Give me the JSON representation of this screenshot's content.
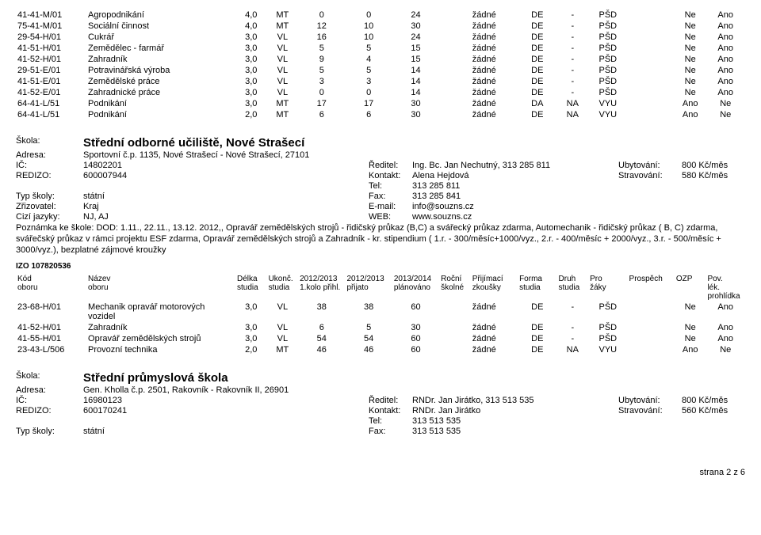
{
  "columns": {
    "kod": "Kód oboru",
    "nazev": "Název oboru",
    "delka": "Délka studia",
    "ukonc": "Ukonč. studia",
    "kolo": "2012/2013 1.kolo přihl.",
    "prijato": "2012/2013 přijato",
    "planovano": "2013/2014 plánováno",
    "skolne": "Roční školné",
    "zkousky": "Přijímací zkoušky",
    "formastudia": "Forma studia",
    "druhstudia": "Druh studia",
    "prozaky": "Pro žáky",
    "prospech": "Prospěch",
    "ozp": "OZP",
    "pov": "Pov. lék. prohlídka"
  },
  "table1": [
    {
      "kod": "41-41-M/01",
      "nazev": "Agropodnikání",
      "delka": "4,0",
      "ukonc": "MT",
      "kolo": "0",
      "prijato": "0",
      "plan": "24",
      "skolne": "",
      "zkousky": "žádné",
      "forma": "DE",
      "druh": "-",
      "pro": "PŠD",
      "prospech": "",
      "ozp": "Ne",
      "pov": "Ano"
    },
    {
      "kod": "75-41-M/01",
      "nazev": "Sociální činnost",
      "delka": "4,0",
      "ukonc": "MT",
      "kolo": "12",
      "prijato": "10",
      "plan": "30",
      "skolne": "",
      "zkousky": "žádné",
      "forma": "DE",
      "druh": "-",
      "pro": "PŠD",
      "prospech": "",
      "ozp": "Ne",
      "pov": "Ano"
    },
    {
      "kod": "29-54-H/01",
      "nazev": "Cukrář",
      "delka": "3,0",
      "ukonc": "VL",
      "kolo": "16",
      "prijato": "10",
      "plan": "24",
      "skolne": "",
      "zkousky": "žádné",
      "forma": "DE",
      "druh": "-",
      "pro": "PŠD",
      "prospech": "",
      "ozp": "Ne",
      "pov": "Ano"
    },
    {
      "kod": "41-51-H/01",
      "nazev": "Zemědělec - farmář",
      "delka": "3,0",
      "ukonc": "VL",
      "kolo": "5",
      "prijato": "5",
      "plan": "15",
      "skolne": "",
      "zkousky": "žádné",
      "forma": "DE",
      "druh": "-",
      "pro": "PŠD",
      "prospech": "",
      "ozp": "Ne",
      "pov": "Ano"
    },
    {
      "kod": "41-52-H/01",
      "nazev": "Zahradník",
      "delka": "3,0",
      "ukonc": "VL",
      "kolo": "9",
      "prijato": "4",
      "plan": "15",
      "skolne": "",
      "zkousky": "žádné",
      "forma": "DE",
      "druh": "-",
      "pro": "PŠD",
      "prospech": "",
      "ozp": "Ne",
      "pov": "Ano"
    },
    {
      "kod": "29-51-E/01",
      "nazev": "Potravinářská výroba",
      "delka": "3,0",
      "ukonc": "VL",
      "kolo": "5",
      "prijato": "5",
      "plan": "14",
      "skolne": "",
      "zkousky": "žádné",
      "forma": "DE",
      "druh": "-",
      "pro": "PŠD",
      "prospech": "",
      "ozp": "Ne",
      "pov": "Ano"
    },
    {
      "kod": "41-51-E/01",
      "nazev": "Zemědělské práce",
      "delka": "3,0",
      "ukonc": "VL",
      "kolo": "3",
      "prijato": "3",
      "plan": "14",
      "skolne": "",
      "zkousky": "žádné",
      "forma": "DE",
      "druh": "-",
      "pro": "PŠD",
      "prospech": "",
      "ozp": "Ne",
      "pov": "Ano"
    },
    {
      "kod": "41-52-E/01",
      "nazev": "Zahradnické práce",
      "delka": "3,0",
      "ukonc": "VL",
      "kolo": "0",
      "prijato": "0",
      "plan": "14",
      "skolne": "",
      "zkousky": "žádné",
      "forma": "DE",
      "druh": "-",
      "pro": "PŠD",
      "prospech": "",
      "ozp": "Ne",
      "pov": "Ano"
    },
    {
      "kod": "64-41-L/51",
      "nazev": "Podnikání",
      "delka": "3,0",
      "ukonc": "MT",
      "kolo": "17",
      "prijato": "17",
      "plan": "30",
      "skolne": "",
      "zkousky": "žádné",
      "forma": "DA",
      "druh": "NA",
      "pro": "VYU",
      "prospech": "",
      "ozp": "Ano",
      "pov": "Ne"
    },
    {
      "kod": "64-41-L/51",
      "nazev": "Podnikání",
      "delka": "2,0",
      "ukonc": "MT",
      "kolo": "6",
      "prijato": "6",
      "plan": "30",
      "skolne": "",
      "zkousky": "žádné",
      "forma": "DE",
      "druh": "NA",
      "pro": "VYU",
      "prospech": "",
      "ozp": "Ano",
      "pov": "Ne"
    }
  ],
  "school1": {
    "labels": {
      "skola": "Škola:",
      "adresa": "Adresa:",
      "ic": "IČ:",
      "redizo": "REDIZO:",
      "typ": "Typ školy:",
      "zriz": "Zřizovatel:",
      "cizi": "Cizí jazyky:",
      "reditel": "Ředitel:",
      "kontakt": "Kontakt:",
      "tel": "Tel:",
      "fax": "Fax:",
      "email": "E-mail:",
      "web": "WEB:",
      "ubyt": "Ubytování:",
      "strav": "Stravování:"
    },
    "name": "Střední odborné učiliště, Nové Strašecí",
    "adresa": "Sportovní č.p. 1135, Nové Strašecí - Nové Strašecí, 27101",
    "ic": "14802201",
    "redizo": "600007944",
    "typ": "státní",
    "zriz": "Kraj",
    "cizi": "NJ, AJ",
    "reditel": "Ing. Bc. Jan Nechutný, 313 285 811",
    "kontakt": "Alena Hejdová",
    "tel": "313 285 811",
    "fax": "313 285 841",
    "email": "info@souzns.cz",
    "web": "www.souzns.cz",
    "ubyt": "800 Kč/měs",
    "strav": "580 Kč/měs",
    "note": "Poznámka ke škole: DOD: 1.11., 22.11., 13.12. 2012,,  Opravář zemědělských strojů - řidičský průkaz (B,C) a svářecký průkaz zdarma,  Automechanik - řidičský průkaz ( B, C) zdarma, svářečský průkaz v rámci projektu ESF zdarma, Opravář zemědělských strojů a Zahradník - kr. stipendium ( 1.r. - 300/měsíc+1000/vyz., 2.r. - 400/měsíc + 2000/vyz., 3.r. - 500/měsíc + 3000/vyz.),                                    bezplatné zájmové kroužky",
    "izo": "IZO 107820536"
  },
  "table2": [
    {
      "kod": "23-68-H/01",
      "nazev": "Mechanik opravář motorových vozidel",
      "delka": "3,0",
      "ukonc": "VL",
      "kolo": "38",
      "prijato": "38",
      "plan": "60",
      "skolne": "",
      "zkousky": "žádné",
      "forma": "DE",
      "druh": "-",
      "pro": "PŠD",
      "prospech": "",
      "ozp": "Ne",
      "pov": "Ano"
    },
    {
      "kod": "41-52-H/01",
      "nazev": "Zahradník",
      "delka": "3,0",
      "ukonc": "VL",
      "kolo": "6",
      "prijato": "5",
      "plan": "30",
      "skolne": "",
      "zkousky": "žádné",
      "forma": "DE",
      "druh": "-",
      "pro": "PŠD",
      "prospech": "",
      "ozp": "Ne",
      "pov": "Ano"
    },
    {
      "kod": "41-55-H/01",
      "nazev": "Opravář zemědělských strojů",
      "delka": "3,0",
      "ukonc": "VL",
      "kolo": "54",
      "prijato": "54",
      "plan": "60",
      "skolne": "",
      "zkousky": "žádné",
      "forma": "DE",
      "druh": "-",
      "pro": "PŠD",
      "prospech": "",
      "ozp": "Ne",
      "pov": "Ano"
    },
    {
      "kod": "23-43-L/506",
      "nazev": "Provozní technika",
      "delka": "2,0",
      "ukonc": "MT",
      "kolo": "46",
      "prijato": "46",
      "plan": "60",
      "skolne": "",
      "zkousky": "žádné",
      "forma": "DE",
      "druh": "NA",
      "pro": "VYU",
      "prospech": "",
      "ozp": "Ano",
      "pov": "Ne"
    }
  ],
  "school2": {
    "name": "Střední průmyslová škola",
    "adresa": "Gen. Kholla č.p. 2501, Rakovník - Rakovník II, 26901",
    "ic": "16980123",
    "redizo": "600170241",
    "typ": "státní",
    "reditel": "RNDr. Jan Jirátko, 313 513 535",
    "kontakt": "RNDr. Jan Jirátko",
    "tel": "313 513 535",
    "fax": "313 513 535",
    "ubyt": "800 Kč/měs",
    "strav": "560 Kč/měs"
  },
  "footer": "strana 2 z 6",
  "colwidths": {
    "kod": "9%",
    "nazev": "19%",
    "delka": "4%",
    "ukonc": "4%",
    "kolo": "6%",
    "prijato": "6%",
    "plan": "6%",
    "skolne": "4%",
    "zkousky": "6%",
    "forma": "5%",
    "druh": "4%",
    "pro": "5%",
    "prospech": "6%",
    "ozp": "4%",
    "pov": "5%"
  }
}
